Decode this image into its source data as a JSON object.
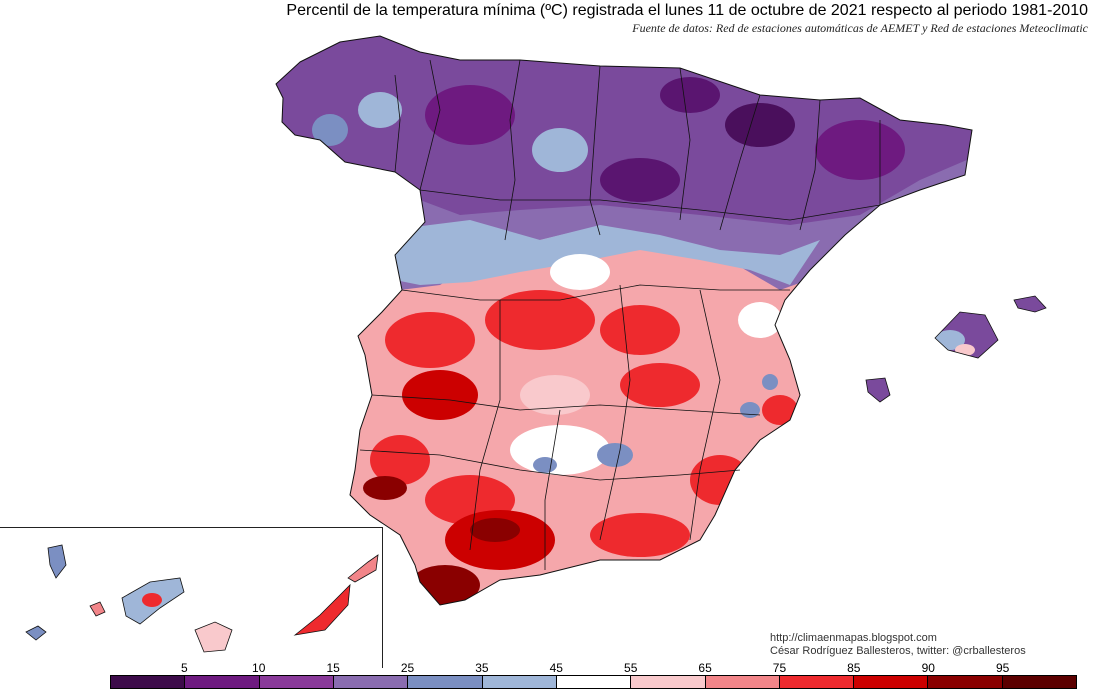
{
  "header": {
    "title": "Percentil de la temperatura mínima (ºC) registrada el lunes 11 de octubre de 2021 respecto al periodo 1981-2010",
    "subtitle": "Fuente de datos: Red de estaciones automáticas de AEMET y Red de estaciones Meteoclimatic"
  },
  "credits": {
    "url": "http://climaenmapas.blogspot.com",
    "author": "César Rodríguez Ballesteros, twitter: @crballesteros"
  },
  "legend": {
    "labels": [
      "5",
      "10",
      "15",
      "25",
      "35",
      "45",
      "55",
      "65",
      "75",
      "85",
      "90",
      "95"
    ],
    "colors": [
      "#3d0b4a",
      "#6e1a80",
      "#8a3a9a",
      "#8a6cb0",
      "#7b8fc2",
      "#9fb6d8",
      "#ffffff",
      "#f9c9cc",
      "#f28589",
      "#ee2a2e",
      "#cc0000",
      "#8a0000",
      "#5c0000"
    ]
  }
}
